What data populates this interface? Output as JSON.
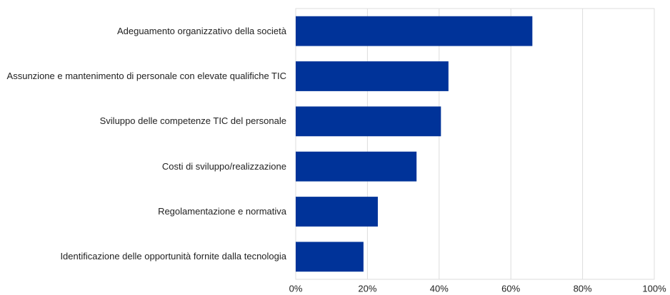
{
  "chart_data": {
    "type": "bar",
    "orientation": "horizontal",
    "categories": [
      "Adeguamento organizzativo della società",
      "Assunzione e mantenimento di personale con elevate qualifiche TIC",
      "Sviluppo delle competenze TIC del personale",
      "Costi di sviluppo/realizzazione",
      "Regolamentazione e normativa",
      "Identificazione delle opportunità fornite dalla tecnologia"
    ],
    "values": [
      66,
      42.6,
      40.5,
      33.7,
      22.9,
      18.9
    ],
    "color": "#003399",
    "xlim": [
      0,
      100
    ],
    "xticks": [
      {
        "value": 0,
        "label": "0%"
      },
      {
        "value": 20,
        "label": "20%"
      },
      {
        "value": 40,
        "label": "40%"
      },
      {
        "value": 60,
        "label": "60%"
      },
      {
        "value": 80,
        "label": "80%"
      },
      {
        "value": 100,
        "label": "100%"
      }
    ],
    "grid": true
  }
}
